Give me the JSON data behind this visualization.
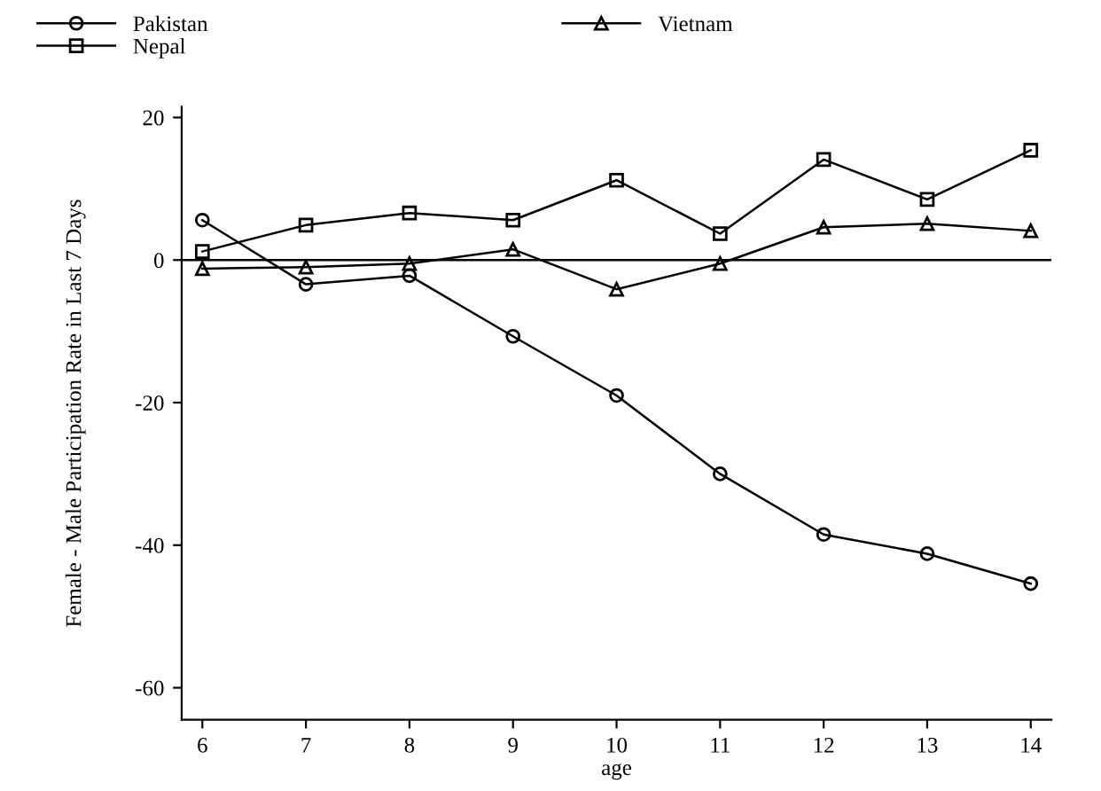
{
  "chart_data": {
    "type": "line",
    "xlabel": "age",
    "ylabel": "Female - Male Participation Rate in Last 7 Days",
    "x": [
      6,
      7,
      8,
      9,
      10,
      11,
      12,
      13,
      14
    ],
    "series": [
      {
        "name": "Pakistan",
        "color": "#000000",
        "marker": "circle",
        "values": [
          5.6,
          -3.4,
          -2.2,
          -10.7,
          -19,
          -30,
          -38.5,
          -41.2,
          -45.4
        ]
      },
      {
        "name": "Nepal",
        "color": "#000000",
        "marker": "square",
        "values": [
          1.2,
          4.9,
          6.6,
          5.6,
          11.2,
          3.7,
          14.1,
          8.5,
          15.4
        ]
      },
      {
        "name": "Vietnam",
        "color": "#000000",
        "marker": "triangle",
        "values": [
          -1.2,
          -1,
          -0.5,
          1.5,
          -4.1,
          -0.5,
          4.6,
          5.1,
          4.1
        ]
      }
    ],
    "xlim": [
      5.8,
      14.2
    ],
    "xticks": [
      6,
      7,
      8,
      9,
      10,
      11,
      12,
      13,
      14
    ],
    "ylim": [
      -64.5,
      21.5
    ],
    "yticks": [
      -60,
      -40,
      -20,
      0,
      20
    ],
    "ref_lines": [
      {
        "axis": "y",
        "value": 0,
        "color": "#000000"
      }
    ],
    "grid": false,
    "legend": "top",
    "line_style": "solid"
  }
}
